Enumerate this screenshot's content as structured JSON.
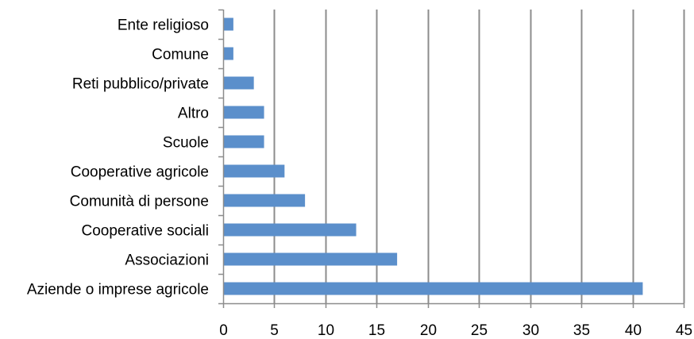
{
  "chart_data": {
    "type": "bar",
    "orientation": "horizontal",
    "categories": [
      "Ente religioso",
      "Comune",
      "Reti pubblico/private",
      "Altro",
      "Scuole",
      "Cooperative agricole",
      "Comunità di persone",
      "Cooperative sociali",
      "Associazioni",
      "Aziende o imprese agricole"
    ],
    "values": [
      1,
      1,
      3,
      4,
      4,
      6,
      8,
      13,
      17,
      41
    ],
    "xlim": [
      0,
      45
    ],
    "xticks": [
      "0",
      "5",
      "10",
      "15",
      "20",
      "25",
      "30",
      "35",
      "40",
      "45"
    ],
    "grid": "vertical",
    "legend": "none",
    "title": "",
    "xlabel": "",
    "ylabel": "",
    "colors": {
      "bar": "#5B8FCB",
      "grid": "#8C8C8C",
      "axis": "#8C8C8C",
      "text": "#000000"
    }
  }
}
